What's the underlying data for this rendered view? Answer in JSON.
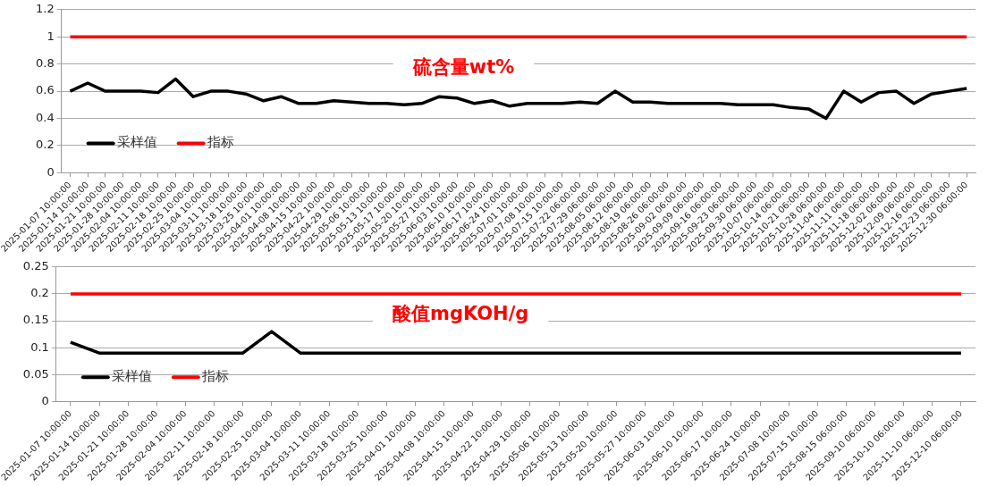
{
  "chart_data": [
    {
      "type": "line",
      "title": "硫含量wt%",
      "marker": "none",
      "grid": "y",
      "legend": "bottom left",
      "categories": [
        "2025-01-07 10:00:00",
        "2025-01-14 10:00:00",
        "2025-01-21 10:00:00",
        "2025-01-28 10:00:00",
        "2025-02-04 10:00:00",
        "2025-02-11 10:00:00",
        "2025-02-18 10:00:00",
        "2025-02-25 10:00:00",
        "2025-03-04 10:00:00",
        "2025-03-11 10:00:00",
        "2025-03-18 10:00:00",
        "2025-03-25 10:00:00",
        "2025-04-01 10:00:00",
        "2025-04-08 10:00:00",
        "2025-04-15 10:00:00",
        "2025-04-22 10:00:00",
        "2025-04-29 10:00:00",
        "2025-05-06 10:00:00",
        "2025-05-13 10:00:00",
        "2025-05-17 10:00:00",
        "2025-05-20 10:00:00",
        "2025-05-27 10:00:00",
        "2025-06-03 10:00:00",
        "2025-06-10 10:00:00",
        "2025-06-17 10:00:00",
        "2025-06-24 10:00:00",
        "2025-07-01 10:00:00",
        "2025-07-08 10:00:00",
        "2025-07-15 10:00:00",
        "2025-07-22 06:00:00",
        "2025-07-29 06:00:00",
        "2025-08-05 06:00:00",
        "2025-08-12 06:00:00",
        "2025-08-19 06:00:00",
        "2025-08-26 06:00:00",
        "2025-09-02 06:00:00",
        "2025-09-09 06:00:00",
        "2025-09-16 06:00:00",
        "2025-09-23 06:00:00",
        "2025-09-30 06:00:00",
        "2025-10-07 06:00:00",
        "2025-10-14 06:00:00",
        "2025-10-21 06:00:00",
        "2025-10-28 06:00:00",
        "2025-11-04 06:00:00",
        "2025-11-11 06:00:00",
        "2025-11-18 06:00:00",
        "2025-12-02 06:00:00",
        "2025-12-09 06:00:00",
        "2025-12-16 06:00:00",
        "2025-12-23 06:00:00",
        "2025-12-30 06:00:00"
      ],
      "series": [
        {
          "name": "采样值",
          "color": "#000000",
          "values": [
            0.6,
            0.66,
            0.6,
            0.6,
            0.6,
            0.59,
            0.69,
            0.56,
            0.6,
            0.6,
            0.58,
            0.53,
            0.56,
            0.51,
            0.51,
            0.53,
            0.52,
            0.51,
            0.51,
            0.5,
            0.51,
            0.56,
            0.55,
            0.51,
            0.53,
            0.49,
            0.51,
            0.51,
            0.51,
            0.52,
            0.51,
            0.6,
            0.52,
            0.52,
            0.51,
            0.51,
            0.51,
            0.51,
            0.5,
            0.5,
            0.5,
            0.48,
            0.47,
            0.4,
            0.6,
            0.52,
            0.59,
            0.6,
            0.51,
            0.58,
            0.6,
            0.62
          ]
        },
        {
          "name": "指标",
          "color": "#ff0000",
          "values": [
            1,
            1,
            1,
            1,
            1,
            1,
            1,
            1,
            1,
            1,
            1,
            1,
            1,
            1,
            1,
            1,
            1,
            1,
            1,
            1,
            1,
            1,
            1,
            1,
            1,
            1,
            1,
            1,
            1,
            1,
            1,
            1,
            1,
            1,
            1,
            1,
            1,
            1,
            1,
            1,
            1,
            1,
            1,
            1,
            1,
            1,
            1,
            1,
            1,
            1,
            1,
            1
          ]
        }
      ],
      "ylim": [
        0,
        1.2
      ],
      "yticks": [
        0,
        0.2,
        0.4,
        0.6,
        0.8,
        1,
        1.2
      ]
    },
    {
      "type": "line",
      "title": "酸值mgKOH/g",
      "marker": "none",
      "grid": "y",
      "legend": "bottom left",
      "categories": [
        "2025-01-07 10:00:00",
        "2025-01-14 10:00:00",
        "2025-01-21 10:00:00",
        "2025-01-28 10:00:00",
        "2025-02-04 10:00:00",
        "2025-02-11 10:00:00",
        "2025-02-18 10:00:00",
        "2025-02-25 10:00:00",
        "2025-03-04 10:00:00",
        "2025-03-11 10:00:00",
        "2025-03-18 10:00:00",
        "2025-03-25 10:00:00",
        "2025-04-01 10:00:00",
        "2025-04-08 10:00:00",
        "2025-04-15 10:00:00",
        "2025-04-22 10:00:00",
        "2025-04-29 10:00:00",
        "2025-05-06 10:00:00",
        "2025-05-13 10:00:00",
        "2025-05-20 10:00:00",
        "2025-05-27 10:00:00",
        "2025-06-03 10:00:00",
        "2025-06-10 10:00:00",
        "2025-06-17 10:00:00",
        "2025-06-24 10:00:00",
        "2025-07-08 10:00:00",
        "2025-07-15 10:00:00",
        "2025-08-15 06:00:00",
        "2025-09-10 06:00:00",
        "2025-10-10 06:00:00",
        "2025-11-10 06:00:00",
        "2025-12-10 06:00:00"
      ],
      "series": [
        {
          "name": "采样值",
          "color": "#000000",
          "values": [
            0.11,
            0.09,
            0.09,
            0.09,
            0.09,
            0.09,
            0.09,
            0.13,
            0.09,
            0.09,
            0.09,
            0.09,
            0.09,
            0.09,
            0.09,
            0.09,
            0.09,
            0.09,
            0.09,
            0.09,
            0.09,
            0.09,
            0.09,
            0.09,
            0.09,
            0.09,
            0.09,
            0.09,
            0.09,
            0.09,
            0.09,
            0.09
          ]
        },
        {
          "name": "指标",
          "color": "#ff0000",
          "values": [
            0.2,
            0.2,
            0.2,
            0.2,
            0.2,
            0.2,
            0.2,
            0.2,
            0.2,
            0.2,
            0.2,
            0.2,
            0.2,
            0.2,
            0.2,
            0.2,
            0.2,
            0.2,
            0.2,
            0.2,
            0.2,
            0.2,
            0.2,
            0.2,
            0.2,
            0.2,
            0.2,
            0.2,
            0.2,
            0.2,
            0.2,
            0.2
          ]
        }
      ],
      "ylim": [
        0,
        0.25
      ],
      "yticks": [
        0,
        0.05,
        0.1,
        0.15,
        0.2,
        0.25
      ]
    }
  ]
}
